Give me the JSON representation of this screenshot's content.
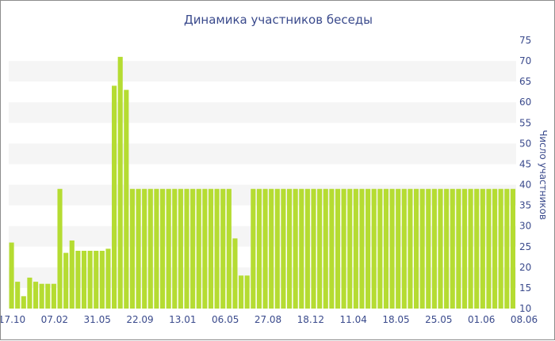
{
  "chart_data": {
    "type": "bar",
    "title": "Динамика участников беседы",
    "xlabel": "",
    "ylabel": "Число участников",
    "ylim": [
      10,
      75
    ],
    "yticks": [
      10,
      15,
      20,
      25,
      30,
      35,
      40,
      45,
      50,
      55,
      60,
      65,
      70,
      75
    ],
    "y_axis_side": "right",
    "grid": "alternating horizontal bands",
    "legend": "none",
    "x_tick_labels": [
      "17.10",
      "07.02",
      "31.05",
      "22.09",
      "13.01",
      "06.05",
      "27.08",
      "18.12",
      "11.04",
      "18.05",
      "25.05",
      "01.06",
      "08.06"
    ],
    "values": [
      26,
      16.5,
      13,
      17.5,
      16.5,
      16,
      16,
      16,
      39,
      23.5,
      26.5,
      24,
      24,
      24,
      24,
      24,
      24.5,
      64,
      71,
      63,
      39,
      39,
      39,
      39,
      39,
      39,
      39,
      39,
      39,
      39,
      39,
      39,
      39,
      39,
      39,
      39,
      39,
      27,
      18,
      18,
      39,
      39,
      39,
      39,
      39,
      39,
      39,
      39,
      39,
      39,
      39,
      39,
      39,
      39,
      39,
      39,
      39,
      39,
      39,
      39,
      39,
      39,
      39,
      39,
      39,
      39,
      39,
      39,
      39,
      39,
      39,
      39,
      39,
      39,
      39,
      39,
      39,
      39,
      39,
      39,
      39,
      39,
      39,
      39
    ],
    "bar_color": "#b5dc32",
    "band_color": "#f5f5f5",
    "text_color": "#3a4a8c"
  }
}
